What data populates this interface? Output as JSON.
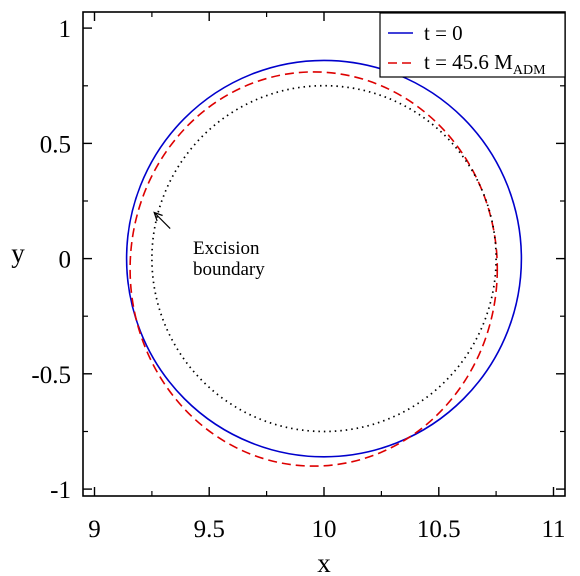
{
  "chart_data": {
    "type": "line",
    "title": "",
    "xlabel": "x",
    "ylabel": "y",
    "xlim": [
      8.95,
      11.05
    ],
    "ylim": [
      -1.03,
      1.07
    ],
    "xticks": [
      9,
      9.5,
      10,
      10.5,
      11
    ],
    "xtick_labels": [
      "9",
      "9.5",
      "10",
      "10.5",
      "11"
    ],
    "yticks": [
      -1,
      -0.5,
      0,
      0.5,
      1
    ],
    "ytick_labels": [
      "-1",
      "-0.5",
      "0",
      "0.5",
      "1"
    ],
    "grid": false,
    "legend_position": "top-right",
    "series": [
      {
        "name": "t = 0",
        "name_main": "t = 0",
        "name_sub": "",
        "shape": "circle",
        "center": [
          10.0,
          0.0
        ],
        "radius_x": 0.86,
        "radius_y": 0.86,
        "color": "#0000cc",
        "style": "solid"
      },
      {
        "name": "t = 45.6 M_ADM",
        "name_main": "t = 45.6 M",
        "name_sub": "ADM",
        "shape": "circle",
        "center": [
          9.955,
          -0.045
        ],
        "radius_x": 0.8,
        "radius_y": 0.855,
        "color": "#dd0000",
        "style": "dashed"
      },
      {
        "name": "",
        "name_main": "",
        "name_sub": "",
        "shape": "circle",
        "center": [
          10.0,
          0.0
        ],
        "radius_x": 0.75,
        "radius_y": 0.75,
        "color": "#000000",
        "style": "dotted"
      }
    ],
    "annotations": [
      {
        "text_line1": "Excision",
        "text_line2": "boundary",
        "arrow_tip": [
          9.26,
          0.2
        ],
        "arrow_tail": [
          9.33,
          0.13
        ]
      }
    ]
  }
}
